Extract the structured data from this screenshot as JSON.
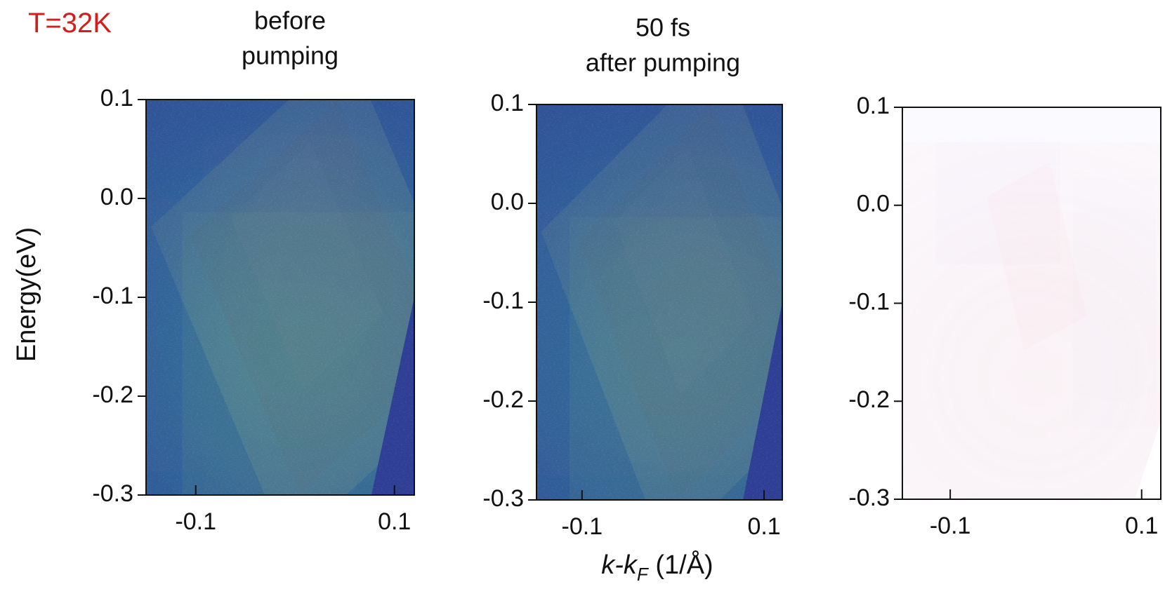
{
  "annotation": "T=32K",
  "ylabel": "Energy(eV)",
  "xlabel": [
    "k-k",
    "F",
    " (1/Å)"
  ],
  "chart_data": [
    {
      "type": "heatmap",
      "style": "spectrum",
      "title": [
        "before",
        "pumping"
      ],
      "xlim": [
        -0.15,
        0.12
      ],
      "xticks": [
        -0.1,
        0.1
      ],
      "ylim": [
        -0.3,
        0.1
      ],
      "yticks": [
        0.1,
        {
          "value": 0,
          "label": "0.0"
        },
        -0.1,
        -0.2,
        -0.3
      ]
    },
    {
      "type": "heatmap",
      "style": "spectrum",
      "title": [
        "50 fs",
        "after pumping"
      ],
      "xlim": [
        -0.15,
        0.12
      ],
      "xticks": [
        -0.1,
        0.1
      ],
      "ylim": [
        -0.3,
        0.1
      ],
      "yticks": [
        0.1,
        {
          "value": 0,
          "label": "0.0"
        },
        -0.1,
        -0.2,
        -0.3
      ]
    },
    {
      "type": "heatmap",
      "style": "difference",
      "xlim": [
        -0.15,
        0.12
      ],
      "xticks": [
        -0.1,
        0.1
      ],
      "ylim": [
        -0.3,
        0.1
      ],
      "yticks": [
        0.1,
        {
          "value": 0,
          "label": "0.0"
        },
        -0.1,
        -0.2,
        -0.3
      ]
    }
  ]
}
